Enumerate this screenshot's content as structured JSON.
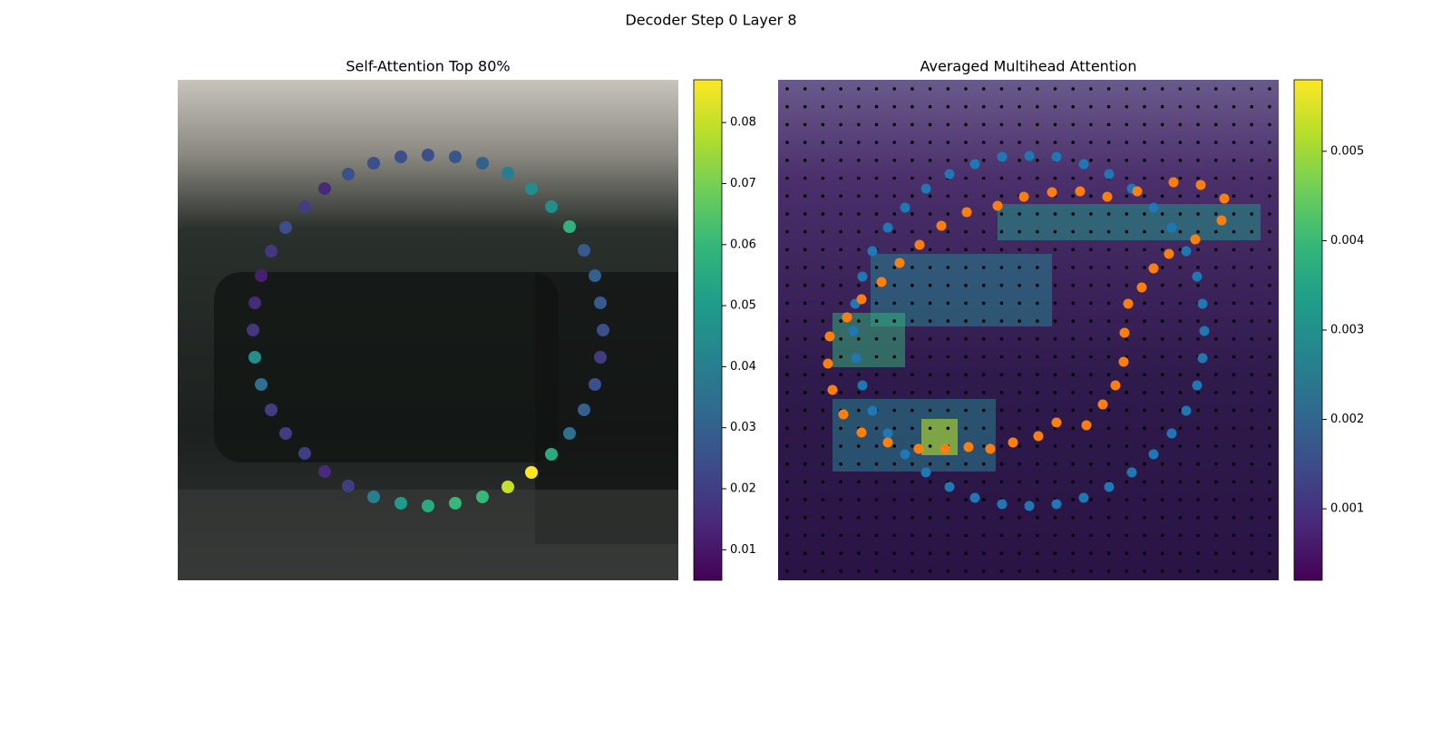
{
  "title": "Decoder Step 0 Layer 8",
  "chart_data": [
    {
      "type": "scatter",
      "title": "Self-Attention Top 80%",
      "colormap": "viridis",
      "xlim": [
        0,
        552
      ],
      "ylim": [
        552,
        0
      ],
      "clim": [
        0.005,
        0.087
      ],
      "cticks": [
        0.01,
        0.02,
        0.03,
        0.04,
        0.05,
        0.06,
        0.07,
        0.08
      ],
      "x": [
        188,
        216,
        246,
        276,
        306,
        336,
        364,
        390,
        412,
        432,
        448,
        460,
        466,
        469,
        466,
        460,
        448,
        432,
        412,
        390,
        364,
        336,
        306,
        276,
        246,
        216,
        188,
        162,
        140,
        119,
        103,
        92,
        85,
        83,
        85,
        92,
        103,
        119,
        140,
        162
      ],
      "y": [
        104,
        92,
        85,
        83,
        85,
        92,
        103,
        120,
        140,
        162,
        188,
        216,
        246,
        276,
        306,
        336,
        364,
        390,
        413,
        433,
        449,
        460,
        467,
        470,
        467,
        460,
        448,
        432,
        412,
        390,
        364,
        336,
        306,
        276,
        246,
        216,
        189,
        163,
        140,
        120
      ],
      "values": [
        0.025,
        0.025,
        0.025,
        0.025,
        0.027,
        0.03,
        0.04,
        0.045,
        0.045,
        0.058,
        0.028,
        0.03,
        0.028,
        0.025,
        0.02,
        0.025,
        0.03,
        0.035,
        0.055,
        0.087,
        0.08,
        0.06,
        0.06,
        0.055,
        0.05,
        0.04,
        0.02,
        0.015,
        0.02,
        0.02,
        0.02,
        0.035,
        0.045,
        0.018,
        0.015,
        0.012,
        0.018,
        0.025,
        0.02,
        0.015
      ]
    },
    {
      "type": "scatter",
      "title": "Averaged Multihead Attention",
      "colormap": "viridis",
      "xlim": [
        0,
        552
      ],
      "ylim": [
        552,
        0
      ],
      "clim": [
        0.0002,
        0.0058
      ],
      "cticks": [
        0.001,
        0.002,
        0.003,
        0.004,
        0.005
      ],
      "series": [
        {
          "color": "#1f77b4",
          "x": [
            189,
            217,
            247,
            277,
            307,
            337,
            365,
            390,
            414,
            434,
            450,
            462,
            468,
            470,
            468,
            462,
            450,
            434,
            414,
            390,
            365,
            337,
            307,
            277,
            247,
            217,
            189,
            163,
            140,
            121,
            104,
            93,
            86,
            83,
            85,
            93,
            104,
            121,
            140,
            163
          ],
          "y": [
            104,
            93,
            85,
            84,
            85,
            93,
            104,
            120,
            141,
            163,
            189,
            217,
            247,
            277,
            307,
            337,
            365,
            390,
            413,
            433,
            449,
            461,
            468,
            470,
            468,
            461,
            449,
            433,
            413,
            390,
            365,
            337,
            307,
            277,
            247,
            217,
            189,
            163,
            141,
            120
          ]
        },
        {
          "color": "#ff7f0e",
          "x": [
            436,
            466,
            492,
            489,
            460,
            431,
            414,
            401,
            386,
            382,
            381,
            372,
            358,
            340,
            307,
            287,
            259,
            234,
            210,
            184,
            155,
            121,
            92,
            72,
            60,
            55,
            57,
            76,
            92,
            114,
            134,
            156,
            180,
            208,
            242,
            271,
            302,
            333,
            363,
            396
          ],
          "y": [
            113,
            116,
            131,
            155,
            176,
            192,
            208,
            229,
            247,
            279,
            311,
            337,
            358,
            381,
            378,
            393,
            400,
            407,
            405,
            407,
            407,
            400,
            389,
            369,
            342,
            313,
            283,
            262,
            242,
            223,
            202,
            182,
            161,
            146,
            139,
            129,
            124,
            123,
            129,
            123
          ]
        }
      ]
    }
  ]
}
